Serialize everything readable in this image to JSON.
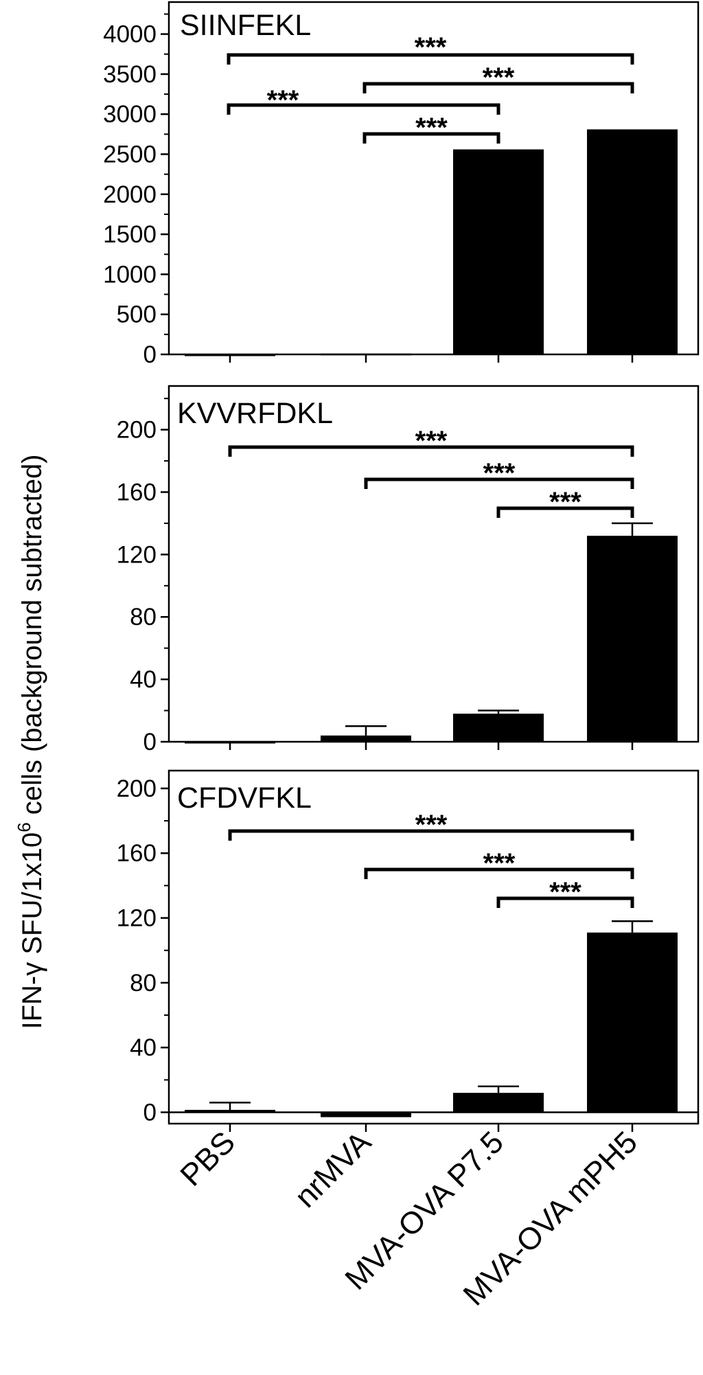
{
  "y_axis_title": {
    "prefix": "IFN-γ SFU/1x10",
    "superscript": "6",
    "suffix": " cells (background subtracted)"
  },
  "categories": [
    "PBS",
    "nrMVA",
    "MVA-OVA P7.5",
    "MVA-OVA mPH5"
  ],
  "colors": {
    "bar": "#000000",
    "axis": "#000000",
    "background": "#ffffff"
  },
  "chart_data": [
    {
      "type": "bar",
      "title": "SIINFEKL",
      "categories": [
        "PBS",
        "nrMVA",
        "MVA-OVA P7.5",
        "MVA-OVA mPH5"
      ],
      "values": [
        0,
        10,
        2560,
        2810
      ],
      "error": [
        0,
        0,
        0,
        0
      ],
      "ylim": [
        0,
        4400
      ],
      "yticks": [
        0,
        500,
        1000,
        1500,
        2000,
        2500,
        3000,
        3500,
        4000
      ],
      "minor_ticks": true,
      "grid": false,
      "significance": [
        {
          "from": 0,
          "to": 3,
          "label": "***"
        },
        {
          "from": 1,
          "to": 3,
          "label": "***"
        },
        {
          "from": 0,
          "to": 2,
          "label": "***"
        },
        {
          "from": 1,
          "to": 2,
          "label": "***"
        }
      ]
    },
    {
      "type": "bar",
      "title": "KVVRFDKL",
      "categories": [
        "PBS",
        "nrMVA",
        "MVA-OVA P7.5",
        "MVA-OVA mPH5"
      ],
      "values": [
        0,
        4,
        18,
        132
      ],
      "error": [
        0,
        6,
        2,
        8
      ],
      "ylim": [
        0,
        228
      ],
      "yticks": [
        0,
        40,
        80,
        120,
        160,
        200
      ],
      "minor_ticks": true,
      "grid": false,
      "significance": [
        {
          "from": 0,
          "to": 3,
          "label": "***"
        },
        {
          "from": 1,
          "to": 3,
          "label": "***"
        },
        {
          "from": 2,
          "to": 3,
          "label": "***"
        }
      ]
    },
    {
      "type": "bar",
      "title": "CFDVFKL",
      "categories": [
        "PBS",
        "nrMVA",
        "MVA-OVA P7.5",
        "MVA-OVA mPH5"
      ],
      "values": [
        1.5,
        -3,
        12,
        111
      ],
      "error": [
        4.5,
        0,
        4,
        7
      ],
      "ylim": [
        -7,
        211
      ],
      "yticks": [
        0,
        40,
        80,
        120,
        160,
        200
      ],
      "minor_ticks": true,
      "grid": false,
      "zero_line": true,
      "significance": [
        {
          "from": 0,
          "to": 3,
          "label": "***"
        },
        {
          "from": 1,
          "to": 3,
          "label": "***"
        },
        {
          "from": 2,
          "to": 3,
          "label": "***"
        }
      ]
    }
  ]
}
